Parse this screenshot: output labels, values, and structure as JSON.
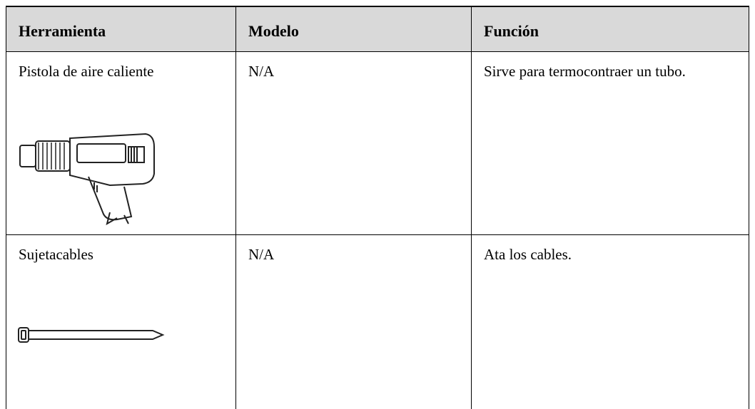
{
  "table": {
    "header": [
      "Herramienta",
      "Modelo",
      "Función"
    ],
    "rows": [
      [
        "Pistola de aire caliente",
        "N/A",
        "Sirve para termocontraer un tubo."
      ],
      [
        "Sujetacables",
        "N/A",
        "Ata los cables."
      ]
    ]
  }
}
